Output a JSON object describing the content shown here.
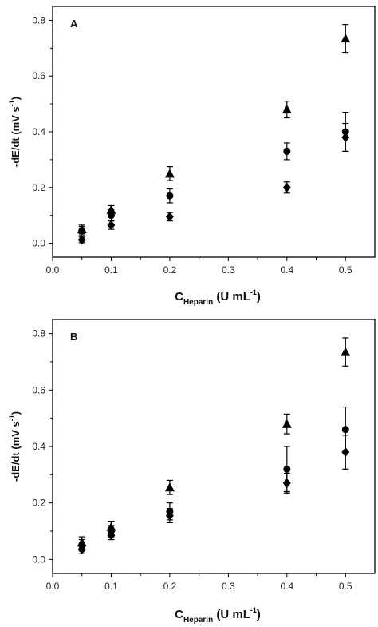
{
  "chart_data": [
    {
      "type": "scatter",
      "panel_label": "A",
      "xlim": [
        0.0,
        0.55
      ],
      "ylim": [
        -0.05,
        0.85
      ],
      "xticks": [
        "0.0",
        "0.1",
        "0.2",
        "0.3",
        "0.4",
        "0.5"
      ],
      "yticks": [
        "0.0",
        "0.2",
        "0.4",
        "0.6",
        "0.8"
      ],
      "xlabel": {
        "main": "C",
        "sub": "Heparin",
        "rest": " (U mL",
        "sup": "-1",
        "close": ")"
      },
      "ylabel": {
        "main": "-dE/dt (mV s",
        "sup": "-1",
        "close": ")"
      },
      "series": [
        {
          "marker": "triangle",
          "x": [
            0.05,
            0.1,
            0.2,
            0.4,
            0.5
          ],
          "y": [
            0.05,
            0.12,
            0.25,
            0.48,
            0.735
          ],
          "err": [
            0.015,
            0.015,
            0.025,
            0.03,
            0.05
          ]
        },
        {
          "marker": "circle",
          "x": [
            0.05,
            0.1,
            0.2,
            0.4,
            0.5
          ],
          "y": [
            0.045,
            0.1,
            0.17,
            0.33,
            0.4
          ],
          "err": [
            0.015,
            0.02,
            0.025,
            0.03,
            0.07
          ]
        },
        {
          "marker": "diamond",
          "x": [
            0.05,
            0.1,
            0.2,
            0.4,
            0.5
          ],
          "y": [
            0.012,
            0.065,
            0.095,
            0.2,
            0.38
          ],
          "err": [
            0.01,
            0.015,
            0.015,
            0.02,
            0.05
          ]
        }
      ]
    },
    {
      "type": "scatter",
      "panel_label": "B",
      "xlim": [
        0.0,
        0.55
      ],
      "ylim": [
        -0.05,
        0.85
      ],
      "xticks": [
        "0.0",
        "0.1",
        "0.2",
        "0.3",
        "0.4",
        "0.5"
      ],
      "yticks": [
        "0.0",
        "0.2",
        "0.4",
        "0.6",
        "0.8"
      ],
      "xlabel": {
        "main": "C",
        "sub": "Heparin",
        "rest": " (U mL",
        "sup": "-1",
        "close": ")"
      },
      "ylabel": {
        "main": "-dE/dt (mV s",
        "sup": "-1",
        "close": ")"
      },
      "series": [
        {
          "marker": "triangle",
          "x": [
            0.05,
            0.1,
            0.2,
            0.4,
            0.5
          ],
          "y": [
            0.06,
            0.115,
            0.255,
            0.48,
            0.735
          ],
          "err": [
            0.02,
            0.02,
            0.025,
            0.035,
            0.05
          ]
        },
        {
          "marker": "circle",
          "x": [
            0.05,
            0.1,
            0.2,
            0.4,
            0.5
          ],
          "y": [
            0.05,
            0.1,
            0.17,
            0.32,
            0.46
          ],
          "err": [
            0.02,
            0.02,
            0.03,
            0.08,
            0.08
          ]
        },
        {
          "marker": "diamond",
          "x": [
            0.05,
            0.1,
            0.2,
            0.4,
            0.5
          ],
          "y": [
            0.035,
            0.085,
            0.155,
            0.27,
            0.38
          ],
          "err": [
            0.015,
            0.015,
            0.025,
            0.035,
            0.06
          ]
        }
      ]
    }
  ]
}
